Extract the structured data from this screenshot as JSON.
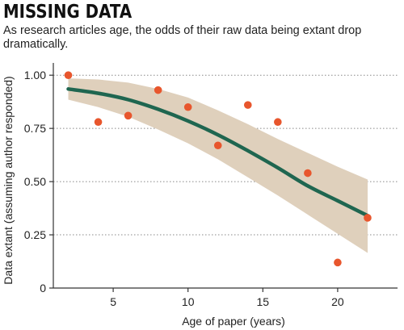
{
  "chart_data": {
    "type": "scatter",
    "title": "MISSING DATA",
    "subtitle": "As research articles age, the odds of their raw data being extant drop dramatically.",
    "xlabel": "Age of paper (years)",
    "ylabel": "Data extant (assuming author responded)",
    "xlim": [
      1,
      24
    ],
    "ylim": [
      0,
      1.05
    ],
    "x_ticks": [
      5,
      10,
      15,
      20
    ],
    "x_tick_labels": [
      "5",
      "10",
      "15",
      "20"
    ],
    "y_ticks": [
      0,
      0.25,
      0.5,
      0.75,
      1.0
    ],
    "y_tick_labels": [
      "0",
      "0.25",
      "0.50",
      "0.75",
      "1.00"
    ],
    "grid": "horizontal dotted",
    "points": {
      "x": [
        2,
        4,
        6,
        8,
        10,
        12,
        14,
        16,
        18,
        20,
        22
      ],
      "y": [
        1.0,
        0.78,
        0.81,
        0.93,
        0.85,
        0.67,
        0.86,
        0.78,
        0.54,
        0.12,
        0.33
      ]
    },
    "fit_line": {
      "x": [
        2,
        4,
        6,
        8,
        10,
        12,
        14,
        16,
        18,
        20,
        22
      ],
      "y": [
        0.935,
        0.915,
        0.885,
        0.84,
        0.785,
        0.72,
        0.645,
        0.565,
        0.48,
        0.41,
        0.34
      ]
    },
    "confidence_band": {
      "x": [
        2,
        4,
        6,
        8,
        10,
        12,
        14,
        16,
        18,
        20,
        22
      ],
      "upper": [
        0.985,
        0.98,
        0.965,
        0.935,
        0.895,
        0.835,
        0.77,
        0.7,
        0.635,
        0.57,
        0.51
      ],
      "lower": [
        0.885,
        0.85,
        0.805,
        0.745,
        0.68,
        0.605,
        0.52,
        0.435,
        0.345,
        0.255,
        0.165
      ]
    },
    "colors": {
      "points": "#e8562d",
      "fit_line": "#1f6650",
      "band": "#dfd0bc",
      "grid": "#888888",
      "axis": "#333333"
    }
  }
}
